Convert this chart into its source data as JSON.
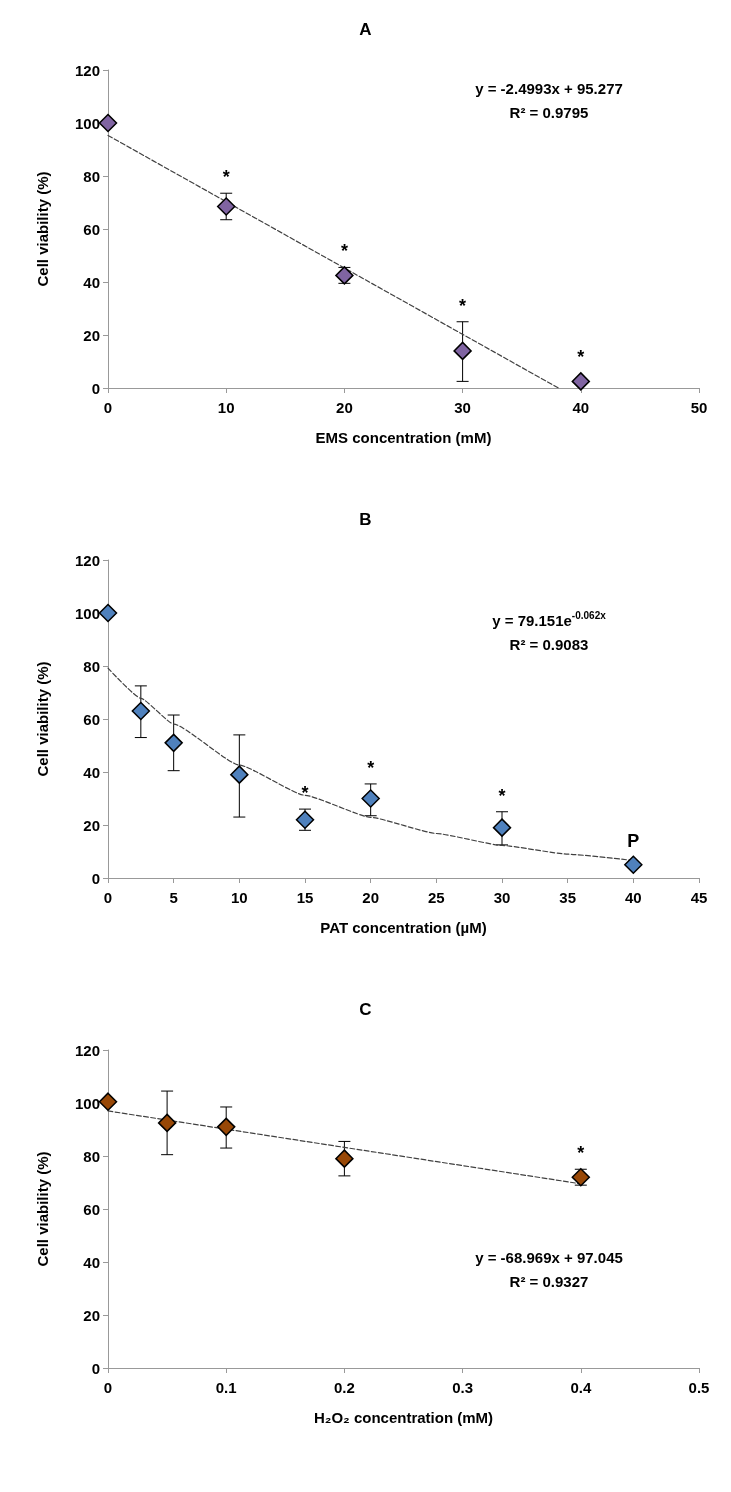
{
  "chart_data": [
    {
      "type": "scatter",
      "title": "A",
      "xlabel": "EMS concentration (mM)",
      "ylabel": "Cell viability (%)",
      "x": [
        0,
        10,
        20,
        30,
        40
      ],
      "xlim": [
        0,
        50
      ],
      "xticks": [
        0,
        10,
        20,
        30,
        40,
        50
      ],
      "ylim": [
        0,
        120
      ],
      "yticks": [
        0,
        20,
        40,
        60,
        80,
        100,
        120
      ],
      "grid": false,
      "series": [
        {
          "type": "scatter",
          "color": "#8064a2",
          "marker": "diamond",
          "values": [
            100,
            68.5,
            42.5,
            14,
            2.5
          ],
          "errors": [
            null,
            [
              63.5,
              73.5
            ],
            [
              39.5,
              45.5
            ],
            [
              2.5,
              25
            ],
            null
          ],
          "value_labels": [
            null,
            "*",
            "*",
            "*",
            "*"
          ]
        },
        {
          "type": "line",
          "color": "#404040",
          "marker": "none",
          "line_style": "dashed",
          "x": [
            0,
            38.1
          ],
          "values": [
            95.3,
            0
          ]
        }
      ],
      "annotations": [
        "y = -2.4993x + 95.277",
        "R² = 0.9795"
      ]
    },
    {
      "type": "scatter",
      "title": "B",
      "xlabel": "PAT concentration (µM)",
      "ylabel": "Cell viability (%)",
      "x": [
        0,
        2.5,
        5,
        10,
        15,
        20,
        30,
        40
      ],
      "xlim": [
        0,
        45
      ],
      "xticks": [
        0,
        5,
        10,
        15,
        20,
        25,
        30,
        35,
        40,
        45
      ],
      "ylim": [
        0,
        120
      ],
      "yticks": [
        0,
        20,
        40,
        60,
        80,
        100,
        120
      ],
      "grid": false,
      "series": [
        {
          "type": "scatter",
          "color": "#4f81bd",
          "marker": "diamond",
          "values": [
            100,
            63,
            51,
            39,
            22,
            30,
            19,
            5
          ],
          "errors": [
            null,
            [
              53,
              72.5
            ],
            [
              40.5,
              61.5
            ],
            [
              23,
              54
            ],
            [
              18,
              26
            ],
            [
              23.5,
              35.5
            ],
            [
              12.5,
              25
            ],
            null
          ],
          "value_labels": [
            null,
            null,
            null,
            null,
            "*",
            "*",
            "*",
            "P"
          ]
        },
        {
          "type": "line",
          "color": "#404040",
          "marker": "none",
          "line_style": "dashed",
          "x": [
            0,
            2.5,
            5,
            10,
            15,
            20,
            25,
            30,
            35,
            40
          ],
          "values": [
            79.2,
            67.8,
            58.1,
            42.6,
            31.2,
            22.9,
            16.8,
            12.3,
            9.0,
            6.6
          ]
        }
      ],
      "annotations": [
        "y = 79.151e$^{-0.062x}$",
        "R² = 0.9083"
      ]
    },
    {
      "type": "scatter",
      "title": "C",
      "xlabel": "H₂O₂ concentration (mM)",
      "ylabel": "Cell viability (%)",
      "x": [
        0,
        0.05,
        0.1,
        0.2,
        0.4
      ],
      "xlim": [
        0,
        0.5
      ],
      "xticks": [
        0,
        0.1,
        0.2,
        0.3,
        0.4,
        0.5
      ],
      "ylim": [
        0,
        120
      ],
      "yticks": [
        0,
        20,
        40,
        60,
        80,
        100,
        120
      ],
      "grid": false,
      "series": [
        {
          "type": "scatter",
          "color": "#984807",
          "marker": "diamond",
          "values": [
            100.5,
            92.5,
            91,
            79,
            72
          ],
          "errors": [
            null,
            [
              80.5,
              104.5
            ],
            [
              83,
              98.5
            ],
            [
              72.5,
              85.5
            ],
            [
              69,
              75
            ]
          ],
          "value_labels": [
            null,
            null,
            null,
            null,
            "*"
          ]
        },
        {
          "type": "line",
          "color": "#404040",
          "marker": "none",
          "line_style": "dashed",
          "x": [
            0,
            0.4
          ],
          "values": [
            97.0,
            69.5
          ]
        }
      ],
      "annotations": [
        "y = -68.969x + 97.045",
        "R² = 0.9327"
      ]
    }
  ]
}
